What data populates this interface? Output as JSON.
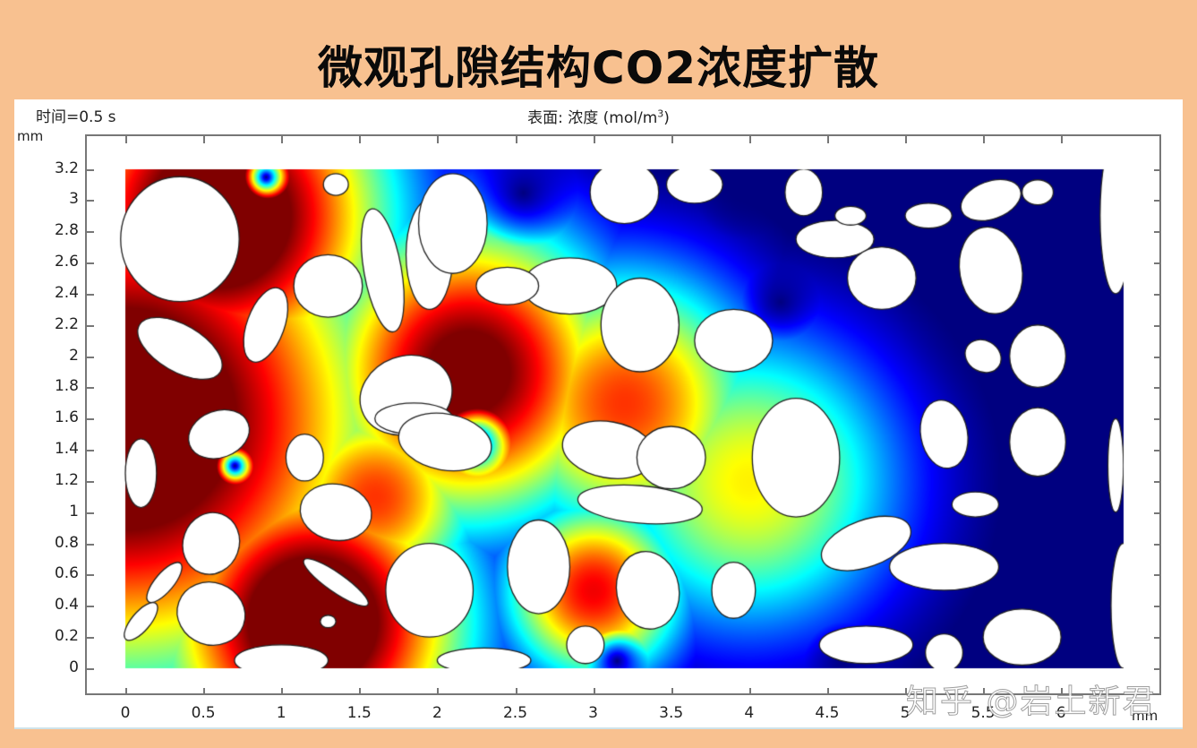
{
  "page": {
    "title": "微观孔隙结构CO2浓度扩散",
    "background_color": "#f8c190",
    "watermark": "知乎 @岩土新君"
  },
  "plot": {
    "time_label": "时间=0.5 s",
    "surface_title": "表面: 浓度 (mol/m",
    "surface_title_sup": "3",
    "surface_title_end": ")",
    "x_unit": "mm",
    "y_unit": "mm"
  },
  "chart_data": {
    "type": "heatmap",
    "title": "表面: 浓度 (mol/m³)",
    "subtitle": "时间=0.5 s",
    "xlabel": "mm",
    "ylabel": "mm",
    "xlim": [
      -0.25,
      6.5
    ],
    "ylim": [
      -0.18,
      3.42
    ],
    "x_ticks": [
      "0",
      "0.5",
      "1",
      "1.5",
      "2",
      "2.5",
      "3",
      "3.5",
      "4",
      "4.5",
      "5",
      "5.5",
      "6"
    ],
    "x_tick_values": [
      0,
      0.5,
      1,
      1.5,
      2,
      2.5,
      3,
      3.5,
      4,
      4.5,
      5,
      5.5,
      6
    ],
    "y_ticks": [
      "0",
      "0.2",
      "0.4",
      "0.6",
      "0.8",
      "1",
      "1.2",
      "1.4",
      "1.6",
      "1.8",
      "2",
      "2.2",
      "2.4",
      "2.6",
      "2.8",
      "3",
      "3.2"
    ],
    "y_tick_values": [
      0,
      0.2,
      0.4,
      0.6,
      0.8,
      1.0,
      1.2,
      1.4,
      1.6,
      1.8,
      2.0,
      2.2,
      2.4,
      2.6,
      2.8,
      3.0,
      3.2
    ],
    "domain": {
      "x": [
        0,
        6.4
      ],
      "y": [
        0,
        3.2
      ]
    },
    "colormap": "jet (rainbow): high=dark red, low=dark blue",
    "grid": false,
    "legend": "none",
    "description": "CO2 concentration diffusing from left boundary (high, dark red) to right (low, dark blue) through porous microstructure; pores (solid grains) shown white with black outline",
    "concentration_field_sources": [
      {
        "x": 0.0,
        "y": 1.6,
        "strength": 1.0,
        "spread": 1.7
      },
      {
        "x": 0.6,
        "y": 2.9,
        "strength": 1.0,
        "spread": 1.1
      },
      {
        "x": 1.2,
        "y": 0.3,
        "strength": 1.0,
        "spread": 1.0
      },
      {
        "x": 2.2,
        "y": 1.9,
        "strength": 0.9,
        "spread": 1.0
      },
      {
        "x": 3.2,
        "y": 1.7,
        "strength": 0.7,
        "spread": 0.9
      },
      {
        "x": 3.0,
        "y": 0.5,
        "strength": 0.75,
        "spread": 0.6
      },
      {
        "x": 4.0,
        "y": 1.2,
        "strength": 0.55,
        "spread": 1.0
      },
      {
        "x": 1.6,
        "y": 1.1,
        "strength": 0.7,
        "spread": 0.7
      }
    ],
    "low_pockets": [
      {
        "x": 2.55,
        "y": 3.05,
        "r": 0.35
      },
      {
        "x": 3.95,
        "y": 3.05,
        "r": 0.3
      },
      {
        "x": 2.25,
        "y": 1.45,
        "r": 0.22
      },
      {
        "x": 0.7,
        "y": 1.3,
        "r": 0.12
      },
      {
        "x": 0.9,
        "y": 3.15,
        "r": 0.15
      },
      {
        "x": 5.9,
        "y": 2.5,
        "r": 1.0
      },
      {
        "x": 4.2,
        "y": 2.35,
        "r": 0.25
      },
      {
        "x": 3.15,
        "y": 0.05,
        "r": 0.2
      },
      {
        "x": 4.6,
        "y": 0.05,
        "r": 0.25
      },
      {
        "x": 6.1,
        "y": 0.6,
        "r": 0.6
      }
    ],
    "pores": [
      {
        "cx": 0.35,
        "cy": 2.75,
        "rx": 0.38,
        "ry": 0.4,
        "rot": 0
      },
      {
        "cx": 0.9,
        "cy": 2.2,
        "rx": 0.12,
        "ry": 0.25,
        "rot": -20
      },
      {
        "cx": 1.3,
        "cy": 2.45,
        "rx": 0.22,
        "ry": 0.2,
        "rot": 0
      },
      {
        "cx": 1.35,
        "cy": 3.1,
        "rx": 0.08,
        "ry": 0.07,
        "rot": 0
      },
      {
        "cx": 1.65,
        "cy": 2.55,
        "rx": 0.12,
        "ry": 0.4,
        "rot": 10
      },
      {
        "cx": 1.95,
        "cy": 2.65,
        "rx": 0.15,
        "ry": 0.35,
        "rot": 0
      },
      {
        "cx": 0.35,
        "cy": 2.05,
        "rx": 0.3,
        "ry": 0.15,
        "rot": -30
      },
      {
        "cx": 1.8,
        "cy": 1.75,
        "rx": 0.3,
        "ry": 0.25,
        "rot": 20
      },
      {
        "cx": 1.85,
        "cy": 1.6,
        "rx": 0.25,
        "ry": 0.1,
        "rot": 0
      },
      {
        "cx": 0.1,
        "cy": 1.25,
        "rx": 0.1,
        "ry": 0.22,
        "rot": 0
      },
      {
        "cx": 0.6,
        "cy": 1.5,
        "rx": 0.2,
        "ry": 0.15,
        "rot": 20
      },
      {
        "cx": 1.15,
        "cy": 1.35,
        "rx": 0.12,
        "ry": 0.15,
        "rot": 0
      },
      {
        "cx": 1.35,
        "cy": 1.0,
        "rx": 0.23,
        "ry": 0.18,
        "rot": -10
      },
      {
        "cx": 2.05,
        "cy": 1.45,
        "rx": 0.3,
        "ry": 0.18,
        "rot": -10
      },
      {
        "cx": 0.55,
        "cy": 0.8,
        "rx": 0.18,
        "ry": 0.2,
        "rot": -20
      },
      {
        "cx": 0.25,
        "cy": 0.55,
        "rx": 0.06,
        "ry": 0.16,
        "rot": -40
      },
      {
        "cx": 0.55,
        "cy": 0.35,
        "rx": 0.22,
        "ry": 0.2,
        "rot": -20
      },
      {
        "cx": 0.1,
        "cy": 0.3,
        "rx": 0.06,
        "ry": 0.15,
        "rot": -40
      },
      {
        "cx": 1.0,
        "cy": 0.05,
        "rx": 0.3,
        "ry": 0.1,
        "rot": 0
      },
      {
        "cx": 1.35,
        "cy": 0.55,
        "rx": 0.25,
        "ry": 0.06,
        "rot": -35
      },
      {
        "cx": 1.3,
        "cy": 0.3,
        "rx": 0.05,
        "ry": 0.04,
        "rot": 0
      },
      {
        "cx": 1.95,
        "cy": 0.5,
        "rx": 0.28,
        "ry": 0.3,
        "rot": 0
      },
      {
        "cx": 2.3,
        "cy": 0.05,
        "rx": 0.3,
        "ry": 0.08,
        "rot": 0
      },
      {
        "cx": 2.65,
        "cy": 0.65,
        "rx": 0.2,
        "ry": 0.3,
        "rot": 0
      },
      {
        "cx": 2.1,
        "cy": 2.85,
        "rx": 0.22,
        "ry": 0.32,
        "rot": 0
      },
      {
        "cx": 2.85,
        "cy": 2.45,
        "rx": 0.3,
        "ry": 0.18,
        "rot": 0
      },
      {
        "cx": 2.45,
        "cy": 2.45,
        "rx": 0.2,
        "ry": 0.12,
        "rot": 0
      },
      {
        "cx": 3.3,
        "cy": 2.2,
        "rx": 0.25,
        "ry": 0.3,
        "rot": 0
      },
      {
        "cx": 3.2,
        "cy": 3.05,
        "rx": 0.22,
        "ry": 0.2,
        "rot": 0
      },
      {
        "cx": 3.65,
        "cy": 3.1,
        "rx": 0.18,
        "ry": 0.12,
        "rot": 0
      },
      {
        "cx": 3.1,
        "cy": 1.4,
        "rx": 0.3,
        "ry": 0.18,
        "rot": -10
      },
      {
        "cx": 3.5,
        "cy": 1.35,
        "rx": 0.22,
        "ry": 0.2,
        "rot": 0
      },
      {
        "cx": 3.3,
        "cy": 1.05,
        "rx": 0.4,
        "ry": 0.12,
        "rot": -5
      },
      {
        "cx": 3.35,
        "cy": 0.5,
        "rx": 0.2,
        "ry": 0.25,
        "rot": 10
      },
      {
        "cx": 2.95,
        "cy": 0.15,
        "rx": 0.12,
        "ry": 0.12,
        "rot": 0
      },
      {
        "cx": 3.9,
        "cy": 0.5,
        "rx": 0.14,
        "ry": 0.18,
        "rot": 0
      },
      {
        "cx": 3.9,
        "cy": 2.1,
        "rx": 0.25,
        "ry": 0.2,
        "rot": 0
      },
      {
        "cx": 4.3,
        "cy": 1.35,
        "rx": 0.28,
        "ry": 0.38,
        "rot": 0
      },
      {
        "cx": 4.55,
        "cy": 2.75,
        "rx": 0.25,
        "ry": 0.12,
        "rot": 0
      },
      {
        "cx": 4.85,
        "cy": 2.5,
        "rx": 0.22,
        "ry": 0.2,
        "rot": 0
      },
      {
        "cx": 4.35,
        "cy": 3.05,
        "rx": 0.12,
        "ry": 0.15,
        "rot": 0
      },
      {
        "cx": 4.65,
        "cy": 2.9,
        "rx": 0.1,
        "ry": 0.06,
        "rot": 0
      },
      {
        "cx": 5.15,
        "cy": 2.9,
        "rx": 0.15,
        "ry": 0.08,
        "rot": 0
      },
      {
        "cx": 5.55,
        "cy": 2.55,
        "rx": 0.2,
        "ry": 0.28,
        "rot": 10
      },
      {
        "cx": 5.55,
        "cy": 3.0,
        "rx": 0.2,
        "ry": 0.12,
        "rot": 20
      },
      {
        "cx": 5.85,
        "cy": 3.05,
        "rx": 0.1,
        "ry": 0.08,
        "rot": 0
      },
      {
        "cx": 5.5,
        "cy": 2.0,
        "rx": 0.12,
        "ry": 0.1,
        "rot": -30
      },
      {
        "cx": 5.85,
        "cy": 2.0,
        "rx": 0.18,
        "ry": 0.2,
        "rot": 0
      },
      {
        "cx": 5.25,
        "cy": 1.5,
        "rx": 0.15,
        "ry": 0.22,
        "rot": 10
      },
      {
        "cx": 5.85,
        "cy": 1.45,
        "rx": 0.18,
        "ry": 0.22,
        "rot": 0
      },
      {
        "cx": 6.35,
        "cy": 1.3,
        "rx": 0.05,
        "ry": 0.3,
        "rot": 0
      },
      {
        "cx": 5.45,
        "cy": 1.05,
        "rx": 0.15,
        "ry": 0.08,
        "rot": 0
      },
      {
        "cx": 4.75,
        "cy": 0.8,
        "rx": 0.3,
        "ry": 0.15,
        "rot": 20
      },
      {
        "cx": 5.25,
        "cy": 0.65,
        "rx": 0.35,
        "ry": 0.15,
        "rot": 0
      },
      {
        "cx": 4.75,
        "cy": 0.15,
        "rx": 0.3,
        "ry": 0.12,
        "rot": 0
      },
      {
        "cx": 5.25,
        "cy": 0.1,
        "rx": 0.12,
        "ry": 0.12,
        "rot": 0
      },
      {
        "cx": 5.75,
        "cy": 0.2,
        "rx": 0.25,
        "ry": 0.18,
        "rot": 0
      },
      {
        "cx": 6.4,
        "cy": 0.4,
        "rx": 0.08,
        "ry": 0.4,
        "rot": 0
      },
      {
        "cx": 6.35,
        "cy": 2.9,
        "rx": 0.1,
        "ry": 0.5,
        "rot": 0
      }
    ]
  }
}
